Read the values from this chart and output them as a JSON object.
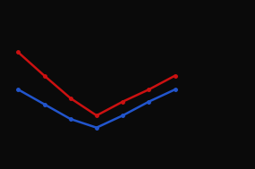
{
  "red_x": [
    1,
    2,
    3,
    4,
    5,
    6,
    7
  ],
  "red_y": [
    95,
    68,
    42,
    22,
    38,
    52,
    68
  ],
  "blue_x": [
    1,
    2,
    3,
    4,
    5,
    6,
    7
  ],
  "blue_y": [
    52,
    35,
    18,
    8,
    22,
    38,
    52
  ],
  "red_color": "#cc1111",
  "blue_color": "#2255cc",
  "background_color": "#0a0a0a",
  "linewidth": 1.8,
  "markersize": 2.5,
  "xlim": [
    0.5,
    8.5
  ],
  "ylim": [
    -30,
    130
  ]
}
